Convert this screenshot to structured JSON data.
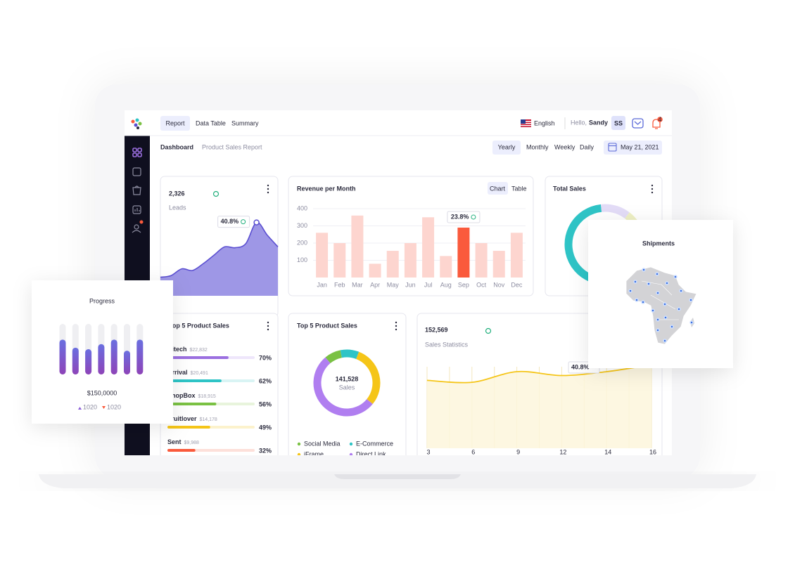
{
  "nav": {
    "tabs": [
      "Report",
      "Data Table",
      "Summary"
    ],
    "language": "English",
    "greeting": "Hello,",
    "user": "Sandy",
    "initials": "SS",
    "alerts": "4"
  },
  "header": {
    "title": "Dashboard",
    "subtitle": "Product Sales Report",
    "periods": [
      "Yearly",
      "Monthly",
      "Weekly",
      "Daily"
    ],
    "date": "May 21, 2021"
  },
  "leads": {
    "type": "area",
    "total": "2,326",
    "label": "Leads",
    "badge": "40.8%",
    "values": [
      22,
      24,
      32,
      30,
      38,
      48,
      58,
      57,
      62,
      87,
      72,
      58
    ],
    "ylim": [
      0,
      100
    ],
    "color": "#9e97e6",
    "line_color": "#5b4fd1"
  },
  "revenue": {
    "type": "bar",
    "title": "Revenue per Month",
    "views": [
      "Chart",
      "Table"
    ],
    "badge": "23.8%",
    "categories": [
      "Jan",
      "Feb",
      "Mar",
      "Apr",
      "May",
      "Jun",
      "Jul",
      "Aug",
      "Sep",
      "Oct",
      "Nov",
      "Dec"
    ],
    "values": [
      260,
      200,
      360,
      80,
      155,
      200,
      350,
      125,
      290,
      200,
      155,
      260
    ],
    "colors": [
      "#fdd5cf",
      "#fdd5cf",
      "#fdd5cf",
      "#fdd5cf",
      "#fdd5cf",
      "#fdd5cf",
      "#fdd5cf",
      "#fdd5cf",
      "#fa5a3c",
      "#fdd5cf",
      "#fdd5cf",
      "#fdd5cf"
    ],
    "ylim": [
      0,
      400
    ],
    "yticks": [
      100,
      200,
      300,
      400
    ],
    "grid": true
  },
  "total_sales": {
    "type": "pie",
    "title": "Total Sales",
    "values": [
      65,
      12,
      23
    ],
    "colors": [
      "#2ec4c6",
      "#e3dcf7",
      "#eef0c4"
    ]
  },
  "top_products": {
    "title": "Top 5 Product Sales",
    "items": [
      {
        "name": "Hitech",
        "amount": "$22,832",
        "percent": 70,
        "percent_label": "70%",
        "color": "#9b6fe0",
        "track": "#eee6fb"
      },
      {
        "name": "Arrival",
        "amount": "$20,491",
        "percent": 62,
        "percent_label": "62%",
        "color": "#2ec4c6",
        "track": "#d9f4f4"
      },
      {
        "name": "ShopBox",
        "amount": "$18,915",
        "percent": 56,
        "percent_label": "56%",
        "color": "#7ac143",
        "track": "#e8f4dc"
      },
      {
        "name": "Fruitlover",
        "amount": "$14,178",
        "percent": 49,
        "percent_label": "49%",
        "color": "#f5c518",
        "track": "#fcf2cc"
      },
      {
        "name": "Sent",
        "amount": "$9,988",
        "percent": 32,
        "percent_label": "32%",
        "color": "#fa5a3c",
        "track": "#fde0da"
      }
    ]
  },
  "sources": {
    "type": "pie",
    "title": "Top 5 Product Sales",
    "total": "141,528",
    "label": "Sales",
    "series": [
      {
        "name": "Social Media",
        "color": "#7ac143",
        "value": 8
      },
      {
        "name": "E-Commerce",
        "color": "#2ec4c6",
        "value": 9
      },
      {
        "name": "iFrame",
        "color": "#f5c518",
        "value": 30
      },
      {
        "name": "Direct Link",
        "color": "#b07ef0",
        "value": 53
      }
    ]
  },
  "statistics": {
    "type": "line",
    "total": "152,569",
    "label": "Sales Statistics",
    "badge": "40.8%",
    "categories": [
      "3",
      "6",
      "9",
      "12",
      "14",
      "16"
    ],
    "values": [
      70,
      68,
      79,
      75,
      79,
      86
    ],
    "ylim": [
      0,
      100
    ],
    "color": "#f5c518",
    "fill": "#fdf6dc"
  },
  "progress": {
    "type": "bar",
    "title": "Progress",
    "values": [
      69,
      53,
      50,
      60,
      69,
      47,
      69
    ],
    "ylim": [
      0,
      100
    ],
    "total": "$150,0000",
    "up": "1020",
    "down": "1020"
  },
  "shipments": {
    "title": "Shipments"
  }
}
